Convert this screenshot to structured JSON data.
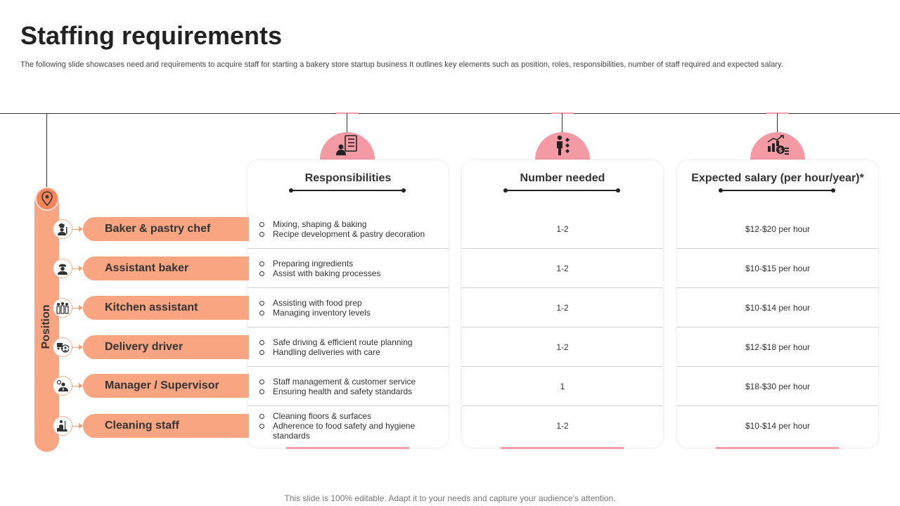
{
  "title": "Staffing requirements",
  "subtitle": "The following slide showcases need and requirements to acquire staff for starting a bakery store startup business It outlines key elements such as position, roles, responsibilities, number of staff required and expected salary.",
  "position_label": "Position",
  "columns": {
    "responsibilities": "Responsibilities",
    "number": "Number needed",
    "salary": "Expected salary (per hour/year)*"
  },
  "rows": [
    {
      "position": "Baker & pastry chef",
      "icon": "chef-icon",
      "responsibilities": [
        "Mixing, shaping & baking",
        "Recipe development & pastry decoration"
      ],
      "number": "1-2",
      "salary": "$12-$20 per hour"
    },
    {
      "position": "Assistant baker",
      "icon": "baker-icon",
      "responsibilities": [
        "Preparing ingredients",
        "Assist with baking processes"
      ],
      "number": "1-2",
      "salary": "$10-$15 per hour"
    },
    {
      "position": "Kitchen assistant",
      "icon": "team-icon",
      "responsibilities": [
        "Assisting with food prep",
        "Managing inventory levels"
      ],
      "number": "1-2",
      "salary": "$10-$14 per hour"
    },
    {
      "position": "Delivery driver",
      "icon": "delivery-icon",
      "responsibilities": [
        "Safe driving & efficient route planning",
        "Handling deliveries with care"
      ],
      "number": "1-2",
      "salary": "$12-$18 per hour"
    },
    {
      "position": "Manager / Supervisor",
      "icon": "manager-icon",
      "responsibilities": [
        "Staff management & customer service",
        "Ensuring health and safety standards"
      ],
      "number": "1",
      "salary": "$18-$30 per hour"
    },
    {
      "position": "Cleaning staff",
      "icon": "cleaning-icon",
      "responsibilities": [
        "Cleaning floors & surfaces",
        "Adherence to food safety and hygiene standards"
      ],
      "number": "1-2",
      "salary": "$10-$14 per hour"
    }
  ],
  "footer": "This slide is 100% editable. Adapt it to your needs and capture your audience's attention.",
  "colors": {
    "accent_orange": "#f9a582",
    "accent_pink": "#f49aa4",
    "text": "#333333"
  }
}
